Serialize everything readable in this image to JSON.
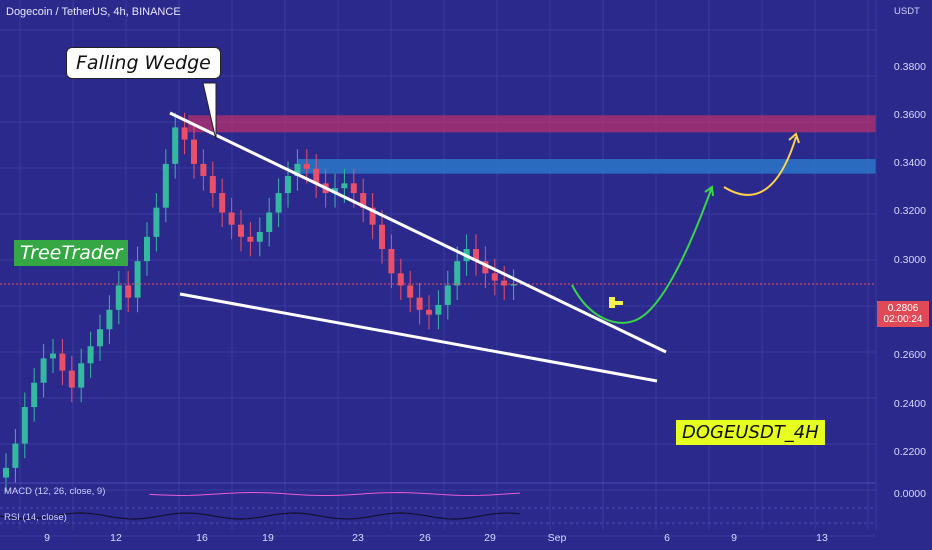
{
  "header": {
    "title": "Dogecoin / TetherUS, 4h, BINANCE"
  },
  "currency_label": "USDT",
  "annotations": {
    "callout": "Falling Wedge",
    "brand": "TreeTrader",
    "symbol_tag": "DOGEUSDT_4H"
  },
  "last_price": {
    "value": "0.2806",
    "countdown": "02:00:24"
  },
  "y_ticks": [
    "0.3800",
    "0.3600",
    "0.3400",
    "0.3200",
    "0.3000",
    "0.2600",
    "0.2400",
    "0.2200",
    "0.0000"
  ],
  "x_ticks": [
    "9",
    "12",
    "16",
    "19",
    "23",
    "26",
    "29",
    "Sep",
    "6",
    "9",
    "13"
  ],
  "indicators": {
    "macd": "MACD (12, 26, close, 9)",
    "rsi": "RSI (14, close)"
  },
  "colors": {
    "background": "#2b2a8c",
    "up_candle": "#35b8a0",
    "down_candle": "#e8506a",
    "resistance_zone": "#c0306a",
    "support_zone": "#2a76c8",
    "wedge_lines": "#ffffff",
    "projection_green": "#39d44a",
    "projection_yellow": "#ffd24a"
  },
  "chart_data": {
    "type": "candlestick",
    "title": "Dogecoin / TetherUS, 4h, BINANCE",
    "ylabel": "USDT",
    "ylim": [
      0.2,
      0.39
    ],
    "closes_approx": [
      0.205,
      0.215,
      0.23,
      0.24,
      0.25,
      0.252,
      0.245,
      0.238,
      0.248,
      0.255,
      0.262,
      0.27,
      0.28,
      0.275,
      0.29,
      0.3,
      0.312,
      0.33,
      0.345,
      0.34,
      0.33,
      0.325,
      0.318,
      0.31,
      0.305,
      0.3,
      0.298,
      0.302,
      0.31,
      0.318,
      0.325,
      0.33,
      0.328,
      0.322,
      0.318,
      0.32,
      0.322,
      0.318,
      0.312,
      0.305,
      0.295,
      0.285,
      0.28,
      0.275,
      0.27,
      0.268,
      0.272,
      0.28,
      0.29,
      0.295,
      0.29,
      0.285,
      0.282,
      0.28,
      0.2806
    ],
    "levels": {
      "resistance_zone": [
        0.343,
        0.35
      ],
      "support_zone": [
        0.326,
        0.332
      ],
      "last_price": 0.2806
    }
  }
}
